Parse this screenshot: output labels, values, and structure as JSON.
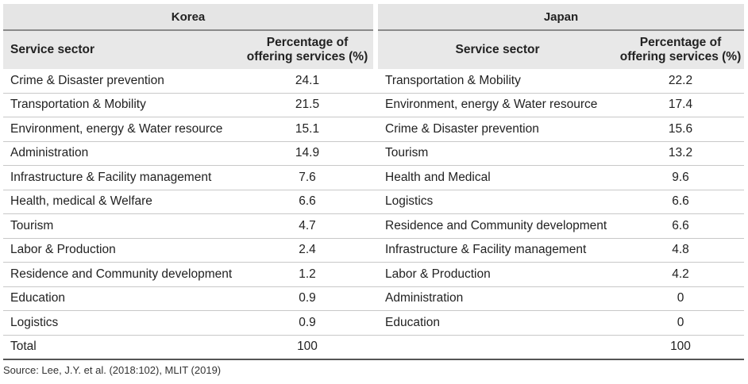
{
  "groups": {
    "korea": "Korea",
    "japan": "Japan"
  },
  "headers": {
    "sector": "Service sector",
    "pct_line1": "Percentage of",
    "pct_line2": "offering services (%)"
  },
  "rows": [
    {
      "k_sector": "Crime & Disaster prevention",
      "k_pct": "24.1",
      "j_sector": "Transportation & Mobility",
      "j_pct": "22.2"
    },
    {
      "k_sector": "Transportation & Mobility",
      "k_pct": "21.5",
      "j_sector": "Environment, energy & Water resource",
      "j_pct": "17.4"
    },
    {
      "k_sector": "Environment, energy & Water resource",
      "k_pct": "15.1",
      "j_sector": "Crime & Disaster prevention",
      "j_pct": "15.6"
    },
    {
      "k_sector": "Administration",
      "k_pct": "14.9",
      "j_sector": "Tourism",
      "j_pct": "13.2"
    },
    {
      "k_sector": "Infrastructure & Facility management",
      "k_pct": "7.6",
      "j_sector": "Health and Medical",
      "j_pct": "9.6"
    },
    {
      "k_sector": "Health, medical & Welfare",
      "k_pct": "6.6",
      "j_sector": "Logistics",
      "j_pct": "6.6"
    },
    {
      "k_sector": "Tourism",
      "k_pct": "4.7",
      "j_sector": "Residence and Community development",
      "j_pct": "6.6"
    },
    {
      "k_sector": "Labor & Production",
      "k_pct": "2.4",
      "j_sector": "Infrastructure & Facility management",
      "j_pct": "4.8"
    },
    {
      "k_sector": "Residence and Community development",
      "k_pct": "1.2",
      "j_sector": "Labor & Production",
      "j_pct": "4.2"
    },
    {
      "k_sector": "Education",
      "k_pct": "0.9",
      "j_sector": "Administration",
      "j_pct": "0"
    },
    {
      "k_sector": "Logistics",
      "k_pct": "0.9",
      "j_sector": "Education",
      "j_pct": "0"
    },
    {
      "k_sector": "Total",
      "k_pct": "100",
      "j_sector": "",
      "j_pct": "100"
    }
  ],
  "source": "Source: Lee, J.Y. et al. (2018:102), MLIT (2019)"
}
